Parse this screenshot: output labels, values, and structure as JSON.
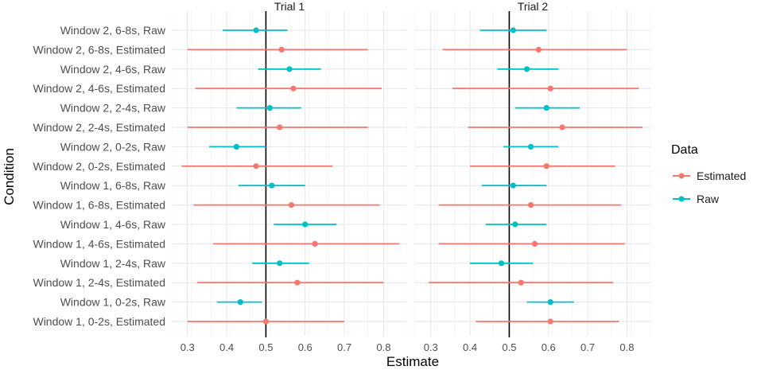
{
  "chart_data": {
    "type": "forest",
    "xlabel": "Estimate",
    "ylabel": "Condition",
    "xlim": [
      0.26,
      0.86
    ],
    "xticks": [
      0.3,
      0.4,
      0.5,
      0.6,
      0.7,
      0.8
    ],
    "xtick_labels": [
      "0.3",
      "0.4",
      "0.5",
      "0.6",
      "0.7",
      "0.8"
    ],
    "reference_line": 0.5,
    "legend": {
      "title": "Data",
      "position": "right",
      "entries": [
        {
          "label": "Estimated",
          "color": "#F8766D"
        },
        {
          "label": "Raw",
          "color": "#00BFC4"
        }
      ]
    },
    "conditions": [
      "Window 2, 6-8s, Raw",
      "Window 2, 6-8s, Estimated",
      "Window 2, 4-6s, Raw",
      "Window 2, 4-6s, Estimated",
      "Window 2, 2-4s, Raw",
      "Window 2, 2-4s, Estimated",
      "Window 2, 0-2s, Raw",
      "Window 2, 0-2s, Estimated",
      "Window 1, 6-8s, Raw",
      "Window 1, 6-8s, Estimated",
      "Window 1, 4-6s, Raw",
      "Window 1, 4-6s, Estimated",
      "Window 1, 2-4s, Raw",
      "Window 1, 2-4s, Estimated",
      "Window 1, 0-2s, Raw",
      "Window 1, 0-2s, Estimated"
    ],
    "panels": [
      {
        "title": "Trial 1",
        "points": [
          {
            "est": 0.475,
            "lo": 0.39,
            "hi": 0.555,
            "group": "Raw"
          },
          {
            "est": 0.54,
            "lo": 0.3,
            "hi": 0.76,
            "group": "Estimated"
          },
          {
            "est": 0.56,
            "lo": 0.48,
            "hi": 0.64,
            "group": "Raw"
          },
          {
            "est": 0.57,
            "lo": 0.32,
            "hi": 0.795,
            "group": "Estimated"
          },
          {
            "est": 0.51,
            "lo": 0.425,
            "hi": 0.59,
            "group": "Raw"
          },
          {
            "est": 0.535,
            "lo": 0.3,
            "hi": 0.76,
            "group": "Estimated"
          },
          {
            "est": 0.425,
            "lo": 0.355,
            "hi": 0.5,
            "group": "Raw"
          },
          {
            "est": 0.475,
            "lo": 0.285,
            "hi": 0.67,
            "group": "Estimated"
          },
          {
            "est": 0.515,
            "lo": 0.43,
            "hi": 0.6,
            "group": "Raw"
          },
          {
            "est": 0.565,
            "lo": 0.315,
            "hi": 0.79,
            "group": "Estimated"
          },
          {
            "est": 0.6,
            "lo": 0.52,
            "hi": 0.68,
            "group": "Raw"
          },
          {
            "est": 0.625,
            "lo": 0.365,
            "hi": 0.84,
            "group": "Estimated"
          },
          {
            "est": 0.535,
            "lo": 0.465,
            "hi": 0.61,
            "group": "Raw"
          },
          {
            "est": 0.58,
            "lo": 0.325,
            "hi": 0.8,
            "group": "Estimated"
          },
          {
            "est": 0.435,
            "lo": 0.375,
            "hi": 0.49,
            "group": "Raw"
          },
          {
            "est": 0.5,
            "lo": 0.3,
            "hi": 0.7,
            "group": "Estimated"
          }
        ]
      },
      {
        "title": "Trial 2",
        "points": [
          {
            "est": 0.51,
            "lo": 0.425,
            "hi": 0.595,
            "group": "Raw"
          },
          {
            "est": 0.575,
            "lo": 0.33,
            "hi": 0.8,
            "group": "Estimated"
          },
          {
            "est": 0.545,
            "lo": 0.47,
            "hi": 0.625,
            "group": "Raw"
          },
          {
            "est": 0.605,
            "lo": 0.355,
            "hi": 0.83,
            "group": "Estimated"
          },
          {
            "est": 0.595,
            "lo": 0.515,
            "hi": 0.68,
            "group": "Raw"
          },
          {
            "est": 0.635,
            "lo": 0.395,
            "hi": 0.84,
            "group": "Estimated"
          },
          {
            "est": 0.555,
            "lo": 0.485,
            "hi": 0.625,
            "group": "Raw"
          },
          {
            "est": 0.595,
            "lo": 0.4,
            "hi": 0.77,
            "group": "Estimated"
          },
          {
            "est": 0.51,
            "lo": 0.43,
            "hi": 0.595,
            "group": "Raw"
          },
          {
            "est": 0.555,
            "lo": 0.32,
            "hi": 0.785,
            "group": "Estimated"
          },
          {
            "est": 0.515,
            "lo": 0.44,
            "hi": 0.595,
            "group": "Raw"
          },
          {
            "est": 0.565,
            "lo": 0.32,
            "hi": 0.795,
            "group": "Estimated"
          },
          {
            "est": 0.48,
            "lo": 0.4,
            "hi": 0.56,
            "group": "Raw"
          },
          {
            "est": 0.53,
            "lo": 0.295,
            "hi": 0.765,
            "group": "Estimated"
          },
          {
            "est": 0.605,
            "lo": 0.545,
            "hi": 0.665,
            "group": "Raw"
          },
          {
            "est": 0.605,
            "lo": 0.415,
            "hi": 0.78,
            "group": "Estimated"
          }
        ]
      }
    ]
  }
}
